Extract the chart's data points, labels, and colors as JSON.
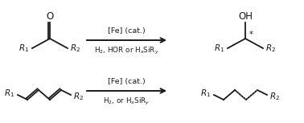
{
  "line_color": "#1a1a1a",
  "text_color": "#1a1a1a",
  "figsize": [
    3.78,
    1.53
  ],
  "dpi": 100,
  "reaction1": {
    "arrow_label_top": "[Fe] (cat.)",
    "arrow_label_bot": "H$_2$, HOR or H$_x$SiR$_y$"
  },
  "reaction2": {
    "arrow_label_top": "[Fe] (cat.)",
    "arrow_label_bot": "H$_2$, or H$_x$SiR$_y$"
  }
}
